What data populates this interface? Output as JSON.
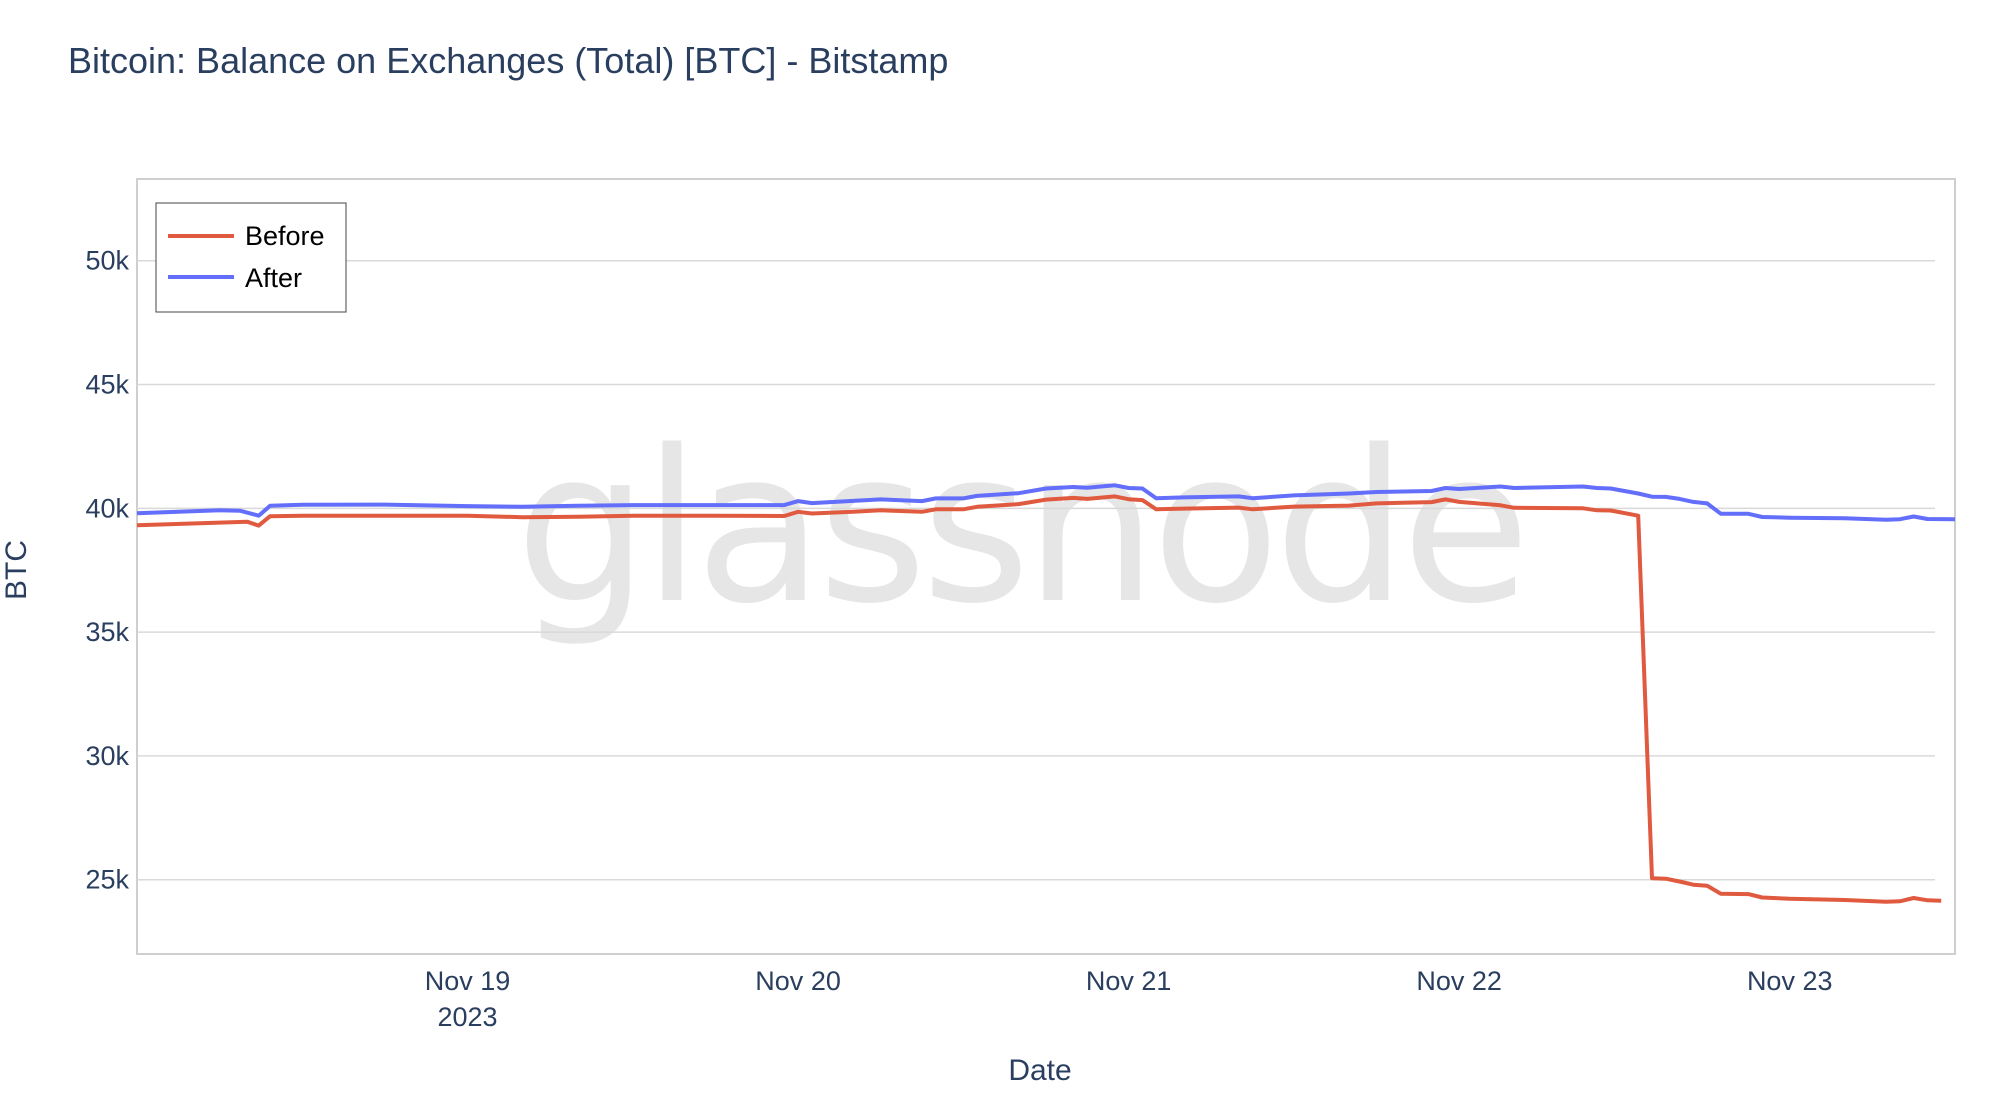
{
  "chart_data": {
    "type": "line",
    "title": "Bitcoin: Balance on Exchanges (Total) [BTC] - Bitstamp",
    "xlabel": "Date",
    "ylabel": "BTC",
    "watermark": "glassnode",
    "ylim": [
      22000,
      53300
    ],
    "xlim": [
      "2023-11-18T00:00",
      "2023-11-23T12:00"
    ],
    "yticks": [
      {
        "value": 25000,
        "label": "25k"
      },
      {
        "value": 30000,
        "label": "30k"
      },
      {
        "value": 35000,
        "label": "35k"
      },
      {
        "value": 40000,
        "label": "40k"
      },
      {
        "value": 45000,
        "label": "45k"
      },
      {
        "value": 50000,
        "label": "50k"
      }
    ],
    "xticks": [
      {
        "value": "2023-11-19T00:00",
        "label": "Nov 19",
        "sublabel": "2023"
      },
      {
        "value": "2023-11-20T00:00",
        "label": "Nov 20",
        "sublabel": ""
      },
      {
        "value": "2023-11-21T00:00",
        "label": "Nov 21",
        "sublabel": ""
      },
      {
        "value": "2023-11-22T00:00",
        "label": "Nov 22",
        "sublabel": ""
      },
      {
        "value": "2023-11-23T00:00",
        "label": "Nov 23",
        "sublabel": ""
      }
    ],
    "grid": true,
    "legend_position": "top-left",
    "series": [
      {
        "name": "Before",
        "color": "#e05a3f",
        "points": [
          [
            "2023-11-18T00:00",
            39320
          ],
          [
            "2023-11-18T08:00",
            39460
          ],
          [
            "2023-11-18T08:50",
            39300
          ],
          [
            "2023-11-18T09:40",
            39680
          ],
          [
            "2023-11-18T12:00",
            39700
          ],
          [
            "2023-11-19T00:00",
            39700
          ],
          [
            "2023-11-19T04:00",
            39640
          ],
          [
            "2023-11-19T08:00",
            39660
          ],
          [
            "2023-11-19T12:00",
            39700
          ],
          [
            "2023-11-19T18:00",
            39700
          ],
          [
            "2023-11-19T23:00",
            39690
          ],
          [
            "2023-11-20T00:00",
            39860
          ],
          [
            "2023-11-20T01:00",
            39790
          ],
          [
            "2023-11-20T04:00",
            39860
          ],
          [
            "2023-11-20T06:00",
            39920
          ],
          [
            "2023-11-20T09:00",
            39860
          ],
          [
            "2023-11-20T10:00",
            39960
          ],
          [
            "2023-11-20T12:00",
            39960
          ],
          [
            "2023-11-20T13:00",
            40060
          ],
          [
            "2023-11-20T16:00",
            40170
          ],
          [
            "2023-11-20T18:00",
            40350
          ],
          [
            "2023-11-20T20:00",
            40420
          ],
          [
            "2023-11-20T21:00",
            40380
          ],
          [
            "2023-11-20T23:00",
            40480
          ],
          [
            "2023-11-21T00:00",
            40370
          ],
          [
            "2023-11-21T01:00",
            40330
          ],
          [
            "2023-11-21T02:00",
            39960
          ],
          [
            "2023-11-21T04:00",
            39990
          ],
          [
            "2023-11-21T08:00",
            40030
          ],
          [
            "2023-11-21T09:00",
            39960
          ],
          [
            "2023-11-21T12:00",
            40070
          ],
          [
            "2023-11-21T16:00",
            40110
          ],
          [
            "2023-11-21T18:00",
            40200
          ],
          [
            "2023-11-21T22:00",
            40250
          ],
          [
            "2023-11-21T23:00",
            40360
          ],
          [
            "2023-11-22T00:00",
            40260
          ],
          [
            "2023-11-22T03:00",
            40120
          ],
          [
            "2023-11-22T04:00",
            40020
          ],
          [
            "2023-11-22T09:00",
            40000
          ],
          [
            "2023-11-22T10:00",
            39920
          ],
          [
            "2023-11-22T11:00",
            39910
          ],
          [
            "2023-11-22T13:00",
            39700
          ],
          [
            "2023-11-22T14:00",
            25060
          ],
          [
            "2023-11-22T15:00",
            25040
          ],
          [
            "2023-11-22T16:00",
            24930
          ],
          [
            "2023-11-22T17:00",
            24800
          ],
          [
            "2023-11-22T18:00",
            24760
          ],
          [
            "2023-11-22T19:00",
            24430
          ],
          [
            "2023-11-22T21:00",
            24420
          ],
          [
            "2023-11-22T22:00",
            24280
          ],
          [
            "2023-11-23T00:00",
            24230
          ],
          [
            "2023-11-23T04:00",
            24180
          ],
          [
            "2023-11-23T07:00",
            24110
          ],
          [
            "2023-11-23T08:00",
            24130
          ],
          [
            "2023-11-23T09:00",
            24260
          ],
          [
            "2023-11-23T10:00",
            24170
          ],
          [
            "2023-11-23T11:00",
            24150
          ]
        ]
      },
      {
        "name": "After",
        "color": "#636efa",
        "points": [
          [
            "2023-11-18T00:00",
            39800
          ],
          [
            "2023-11-18T06:00",
            39920
          ],
          [
            "2023-11-18T07:30",
            39900
          ],
          [
            "2023-11-18T08:50",
            39700
          ],
          [
            "2023-11-18T09:40",
            40100
          ],
          [
            "2023-11-18T12:00",
            40140
          ],
          [
            "2023-11-18T18:00",
            40150
          ],
          [
            "2023-11-19T00:00",
            40090
          ],
          [
            "2023-11-19T04:00",
            40060
          ],
          [
            "2023-11-19T08:00",
            40100
          ],
          [
            "2023-11-19T12:00",
            40130
          ],
          [
            "2023-11-19T18:00",
            40130
          ],
          [
            "2023-11-19T23:00",
            40130
          ],
          [
            "2023-11-20T00:00",
            40290
          ],
          [
            "2023-11-20T01:00",
            40210
          ],
          [
            "2023-11-20T04:00",
            40300
          ],
          [
            "2023-11-20T06:00",
            40360
          ],
          [
            "2023-11-20T09:00",
            40290
          ],
          [
            "2023-11-20T10:00",
            40400
          ],
          [
            "2023-11-20T12:00",
            40400
          ],
          [
            "2023-11-20T13:00",
            40500
          ],
          [
            "2023-11-20T16:00",
            40610
          ],
          [
            "2023-11-20T18:00",
            40800
          ],
          [
            "2023-11-20T20:00",
            40860
          ],
          [
            "2023-11-20T21:00",
            40830
          ],
          [
            "2023-11-20T23:00",
            40930
          ],
          [
            "2023-11-21T00:00",
            40820
          ],
          [
            "2023-11-21T01:00",
            40800
          ],
          [
            "2023-11-21T02:00",
            40410
          ],
          [
            "2023-11-21T04:00",
            40440
          ],
          [
            "2023-11-21T08:00",
            40480
          ],
          [
            "2023-11-21T09:00",
            40410
          ],
          [
            "2023-11-21T12:00",
            40520
          ],
          [
            "2023-11-21T16:00",
            40600
          ],
          [
            "2023-11-21T18:00",
            40660
          ],
          [
            "2023-11-21T22:00",
            40700
          ],
          [
            "2023-11-21T23:00",
            40820
          ],
          [
            "2023-11-22T00:00",
            40780
          ],
          [
            "2023-11-22T03:00",
            40880
          ],
          [
            "2023-11-22T04:00",
            40820
          ],
          [
            "2023-11-22T09:00",
            40880
          ],
          [
            "2023-11-22T10:00",
            40820
          ],
          [
            "2023-11-22T11:00",
            40800
          ],
          [
            "2023-11-22T13:00",
            40600
          ],
          [
            "2023-11-22T14:00",
            40470
          ],
          [
            "2023-11-22T15:00",
            40460
          ],
          [
            "2023-11-22T16:00",
            40380
          ],
          [
            "2023-11-22T17:00",
            40260
          ],
          [
            "2023-11-22T18:00",
            40200
          ],
          [
            "2023-11-22T19:00",
            39780
          ],
          [
            "2023-11-22T21:00",
            39780
          ],
          [
            "2023-11-22T22:00",
            39650
          ],
          [
            "2023-11-23T00:00",
            39620
          ],
          [
            "2023-11-23T04:00",
            39600
          ],
          [
            "2023-11-23T07:00",
            39540
          ],
          [
            "2023-11-23T08:00",
            39560
          ],
          [
            "2023-11-23T09:00",
            39670
          ],
          [
            "2023-11-23T10:00",
            39570
          ],
          [
            "2023-11-23T12:00",
            39560
          ]
        ]
      }
    ]
  }
}
